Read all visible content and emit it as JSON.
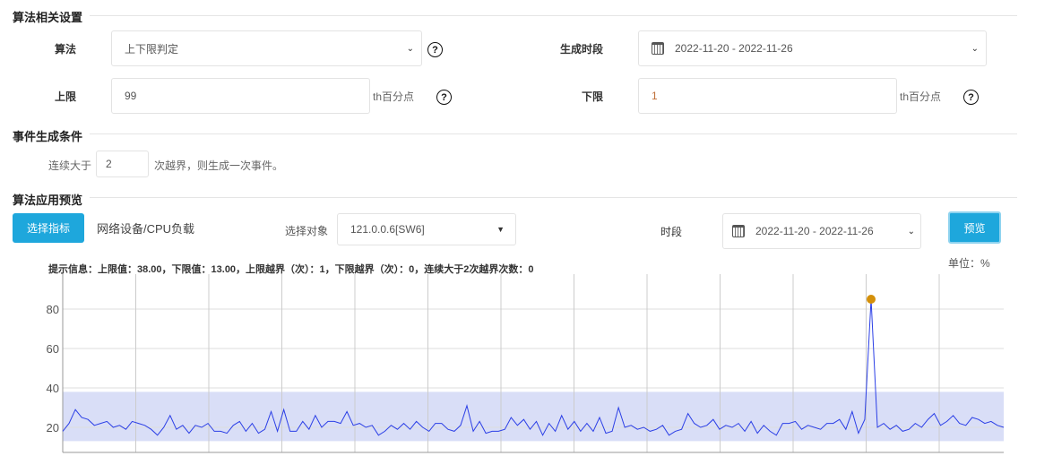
{
  "sections": {
    "algo": "算法相关设置",
    "event": "事件生成条件",
    "preview": "算法应用预览"
  },
  "algo": {
    "label": "算法",
    "value": "上下限判定",
    "period_label": "生成时段",
    "period_value": "2022-11-20 - 2022-11-26",
    "upper_label": "上限",
    "upper_value": "99",
    "lower_label": "下限",
    "lower_value": "1",
    "unit": "th百分点",
    "help": "?"
  },
  "event": {
    "prefix": "连续大于",
    "value": "2",
    "suffix": "次越界，则生成一次事件。"
  },
  "preview": {
    "select_metric": "选择指标",
    "metric": "网络设备/CPU负载",
    "object_label": "选择对象",
    "object_value": "121.0.0.6[SW6]",
    "period_label": "时段",
    "period_value": "2022-11-20 - 2022-11-26",
    "preview_button": "预览",
    "unit": "单位：%",
    "info": "提示信息：上限值：38.00，下限值：13.00，上限越界（次）：1，下限越界（次）：0，连续大于2次越界次数：0"
  },
  "colors": {
    "accent": "#1ea7dc",
    "line": "#2b3fe6",
    "band": "#d9def7",
    "marker": "#d4900a"
  },
  "chart_data": {
    "type": "line",
    "ylim": [
      7,
      97
    ],
    "yticks": [
      20,
      40,
      60,
      80
    ],
    "grid": true,
    "band": [
      13,
      38
    ],
    "series": [
      {
        "values": [
          18,
          22,
          29,
          25,
          24,
          21,
          22,
          23,
          20,
          21,
          19,
          23,
          22,
          21,
          19,
          16,
          20,
          26,
          19,
          21,
          17,
          21,
          20,
          22,
          18,
          18,
          17,
          21,
          23,
          18,
          22,
          17,
          19,
          28,
          18,
          29,
          18,
          18,
          23,
          19,
          26,
          20,
          23,
          23,
          22,
          28,
          21,
          22,
          20,
          21,
          16,
          18,
          21,
          19,
          22,
          19,
          23,
          20,
          18,
          22,
          22,
          19,
          18,
          21,
          31,
          18,
          23,
          17,
          18,
          18,
          19,
          25,
          21,
          24,
          19,
          23,
          16,
          22,
          18,
          26,
          19,
          23,
          18,
          22,
          18,
          25,
          17,
          18,
          30,
          20,
          21,
          19,
          20,
          18,
          19,
          21,
          16,
          18,
          19,
          27,
          22,
          20,
          21,
          24,
          19,
          21,
          20,
          22,
          18,
          23,
          17,
          21,
          18,
          16,
          22,
          22,
          23,
          19,
          21,
          20,
          19,
          22,
          22,
          24,
          19,
          28,
          17,
          24,
          85,
          20,
          22,
          19,
          21,
          18,
          19,
          22,
          20,
          24,
          27,
          21,
          23,
          26,
          22,
          21,
          25,
          24,
          22,
          23,
          21,
          20
        ]
      }
    ],
    "marked_max": 85
  }
}
